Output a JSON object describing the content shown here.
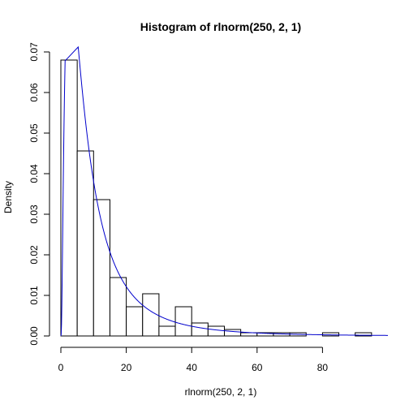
{
  "chart_data": {
    "type": "bar",
    "title": "Histogram of rlnorm(250, 2, 1)",
    "xlabel": "rlnorm(250, 2, 1)",
    "ylabel": "Density",
    "xlim": [
      0,
      100
    ],
    "ylim": [
      0,
      0.07
    ],
    "x_ticks": [
      0,
      20,
      40,
      60,
      80
    ],
    "y_ticks": [
      0.0,
      0.01,
      0.02,
      0.03,
      0.04,
      0.05,
      0.06,
      0.07
    ],
    "y_tick_labels": [
      "0.00",
      "0.01",
      "0.02",
      "0.03",
      "0.04",
      "0.05",
      "0.06",
      "0.07"
    ],
    "bin_width": 5,
    "bins": [
      {
        "x0": 0,
        "x1": 5,
        "density": 0.068
      },
      {
        "x0": 5,
        "x1": 10,
        "density": 0.0456
      },
      {
        "x0": 10,
        "x1": 15,
        "density": 0.0336
      },
      {
        "x0": 15,
        "x1": 20,
        "density": 0.0144
      },
      {
        "x0": 20,
        "x1": 25,
        "density": 0.0072
      },
      {
        "x0": 25,
        "x1": 30,
        "density": 0.0104
      },
      {
        "x0": 30,
        "x1": 35,
        "density": 0.0024
      },
      {
        "x0": 35,
        "x1": 40,
        "density": 0.0072
      },
      {
        "x0": 40,
        "x1": 45,
        "density": 0.0032
      },
      {
        "x0": 45,
        "x1": 50,
        "density": 0.0024
      },
      {
        "x0": 50,
        "x1": 55,
        "density": 0.0016
      },
      {
        "x0": 55,
        "x1": 60,
        "density": 0.0008
      },
      {
        "x0": 60,
        "x1": 65,
        "density": 0.0008
      },
      {
        "x0": 65,
        "x1": 70,
        "density": 0.0008
      },
      {
        "x0": 70,
        "x1": 75,
        "density": 0.0008
      },
      {
        "x0": 75,
        "x1": 80,
        "density": 0.0
      },
      {
        "x0": 80,
        "x1": 85,
        "density": 0.0008
      },
      {
        "x0": 85,
        "x1": 90,
        "density": 0.0
      },
      {
        "x0": 90,
        "x1": 95,
        "density": 0.0008
      }
    ],
    "curve": {
      "distribution": "lognormal",
      "meanlog": 2,
      "sdlog": 1,
      "color": "#0000cc",
      "x_range": [
        0,
        100
      ]
    },
    "bar_fill": "#ffffff",
    "bar_stroke": "#000000",
    "grid": false
  }
}
